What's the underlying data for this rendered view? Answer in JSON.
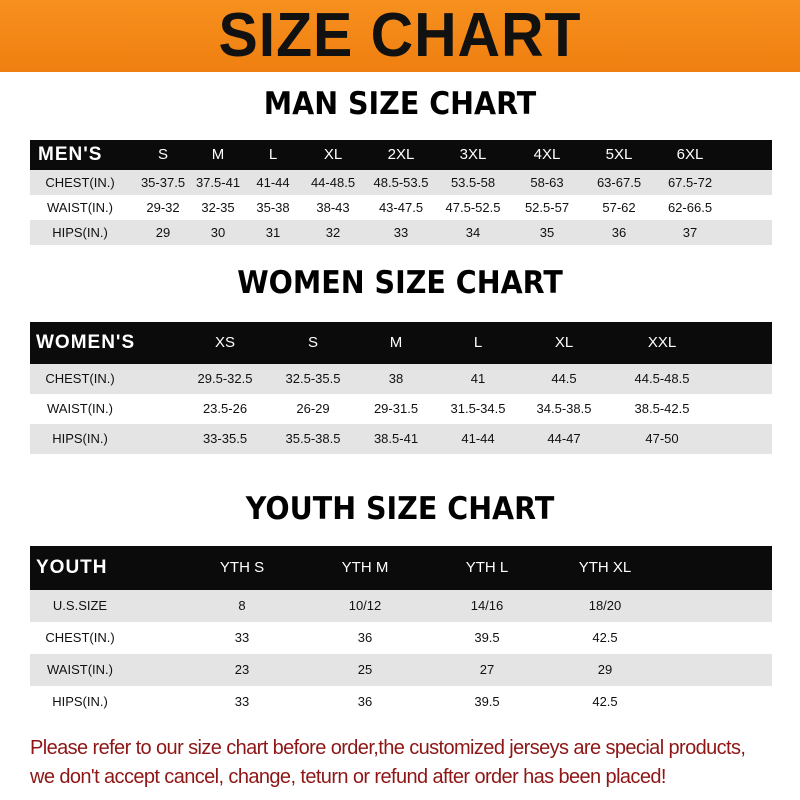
{
  "title": "SIZE CHART",
  "colors": {
    "banner": "#f7901e",
    "header_row": "#0b0b0b",
    "stripe": "#e4e4e4",
    "note": "#8e1616"
  },
  "men": {
    "title": "MAN SIZE CHART",
    "headers": [
      "MEN'S",
      "S",
      "M",
      "L",
      "XL",
      "2XL",
      "3XL",
      "4XL",
      "5XL",
      "6XL"
    ],
    "rows": [
      [
        "CHEST(IN.)",
        "35-37.5",
        "37.5-41",
        "41-44",
        "44-48.5",
        "48.5-53.5",
        "53.5-58",
        "58-63",
        "63-67.5",
        "67.5-72"
      ],
      [
        "WAIST(IN.)",
        "29-32",
        "32-35",
        "35-38",
        "38-43",
        "43-47.5",
        "47.5-52.5",
        "52.5-57",
        "57-62",
        "62-66.5"
      ],
      [
        "HIPS(IN.)",
        "29",
        "30",
        "31",
        "32",
        "33",
        "34",
        "35",
        "36",
        "37"
      ]
    ]
  },
  "women": {
    "title": "WOMEN SIZE CHART",
    "headers": [
      "WOMEN'S",
      "XS",
      "S",
      "M",
      "L",
      "XL",
      "XXL"
    ],
    "rows": [
      [
        "CHEST(IN.)",
        "29.5-32.5",
        "32.5-35.5",
        "38",
        "41",
        "44.5",
        "44.5-48.5"
      ],
      [
        "WAIST(IN.)",
        "23.5-26",
        "26-29",
        "29-31.5",
        "31.5-34.5",
        "34.5-38.5",
        "38.5-42.5"
      ],
      [
        "HIPS(IN.)",
        "33-35.5",
        "35.5-38.5",
        "38.5-41",
        "41-44",
        "44-47",
        "47-50"
      ]
    ]
  },
  "youth": {
    "title": "YOUTH SIZE CHART",
    "headers": [
      "YOUTH",
      "YTH S",
      "YTH M",
      "YTH L",
      "YTH XL"
    ],
    "rows": [
      [
        "U.S.SIZE",
        "8",
        "10/12",
        "14/16",
        "18/20"
      ],
      [
        "CHEST(IN.)",
        "33",
        "36",
        "39.5",
        "42.5"
      ],
      [
        "WAIST(IN.)",
        "23",
        "25",
        "27",
        "29"
      ],
      [
        "HIPS(IN.)",
        "33",
        "36",
        "39.5",
        "42.5"
      ]
    ]
  },
  "note": {
    "line1": "Please refer to our size chart before order,the customized jerseys are special products,",
    "line2": "we don't accept cancel, change, teturn or refund after order has been placed!"
  }
}
